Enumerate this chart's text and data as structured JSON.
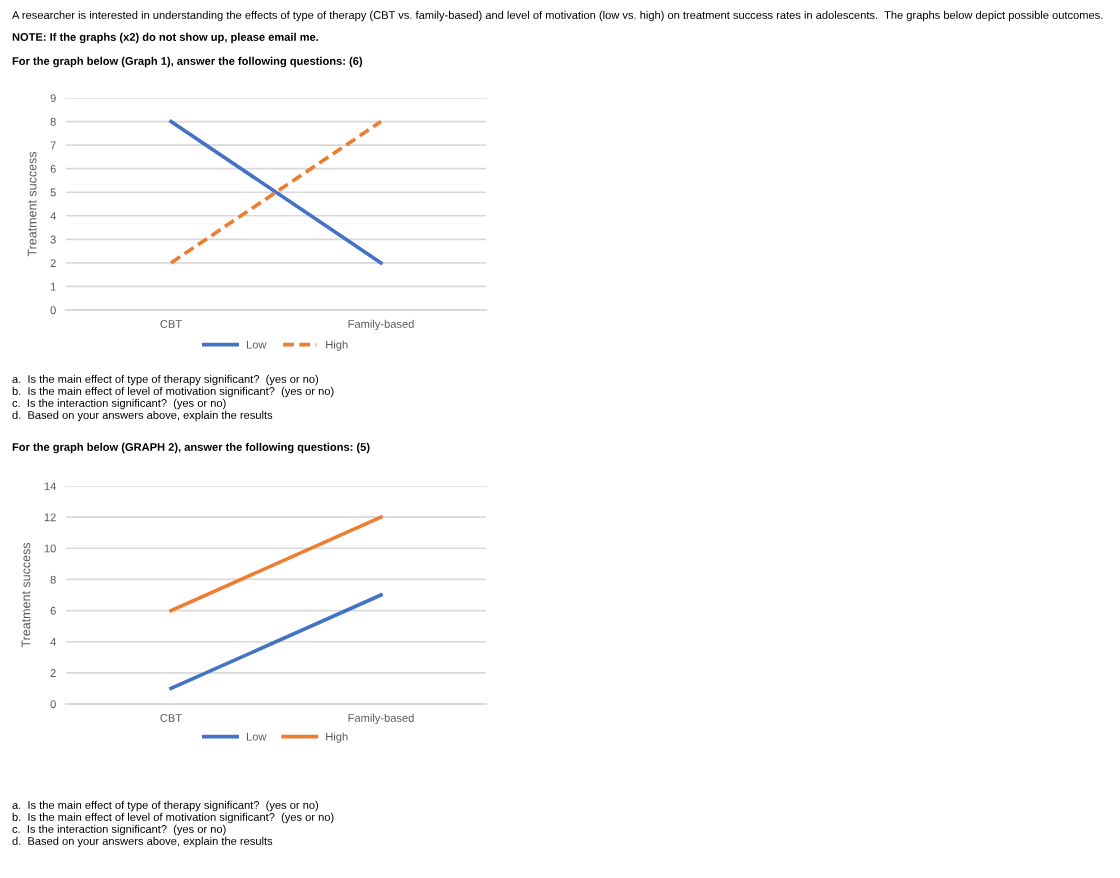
{
  "chart_data": [
    {
      "type": "line",
      "ylabel": "Treatment success",
      "categories": [
        "CBT",
        "Family-based"
      ],
      "series": [
        {
          "name": "Low",
          "color": "#4472c4",
          "values": [
            8,
            2
          ],
          "line_style": "solid"
        },
        {
          "name": "High",
          "color": "#ed7d31",
          "values": [
            2,
            8
          ],
          "line_style": "dashed"
        }
      ],
      "ylim": [
        0,
        9
      ],
      "yticks": [
        0,
        1,
        2,
        3,
        4,
        5,
        6,
        7,
        8,
        9
      ],
      "grid": "y",
      "legend": "bottom",
      "marker": "none",
      "annotations": [
        "A researcher is interested in understanding the effects of type of therapy (CBT vs. family-based) and level of motivation (low vs. high) on treatment success rates in adolescents.  The graphs below depict possible outcomes.",
        "NOTE: If the graphs (x2) do not show up, please email me.",
        "For the graph below (Graph 1), answer the following questions: (6)",
        "a.  Is the main effect of type of therapy significant?  (yes or no)",
        "b.  Is the main effect of level of motivation significant?  (yes or no)",
        "c.  Is the interaction significant?  (yes or no)",
        "d.  Based on your answers above, explain the results"
      ]
    },
    {
      "type": "line",
      "ylabel": "Treatment success",
      "categories": [
        "CBT",
        "Family-based"
      ],
      "series": [
        {
          "name": "Low",
          "color": "#4472c4",
          "values": [
            1,
            7
          ],
          "line_style": "solid"
        },
        {
          "name": "High",
          "color": "#ed7d31",
          "values": [
            6,
            12
          ],
          "line_style": "solid"
        }
      ],
      "ylim": [
        0,
        14
      ],
      "yticks": [
        0,
        2,
        4,
        6,
        8,
        10,
        12,
        14
      ],
      "grid": "y",
      "legend": "bottom",
      "marker": "none",
      "annotations": [
        "For the graph below (GRAPH 2), answer the following questions: (5)",
        "a.  Is the main effect of type of therapy significant?  (yes or no)",
        "b.  Is the main effect of level of motivation significant?  (yes or no)",
        "c.  Is the interaction significant?  (yes or no)",
        "d.  Based on your answers above, explain the results"
      ]
    }
  ]
}
